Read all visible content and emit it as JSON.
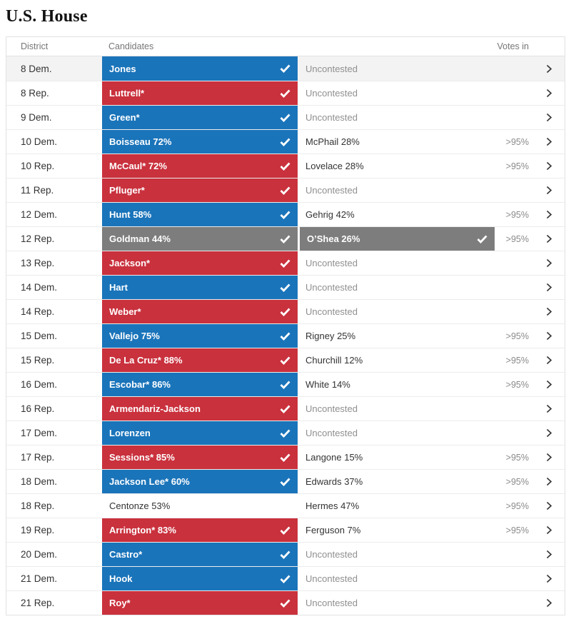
{
  "page": {
    "title": "U.S. House"
  },
  "table": {
    "headers": {
      "district": "District",
      "candidates": "Candidates",
      "votes_in": "Votes in"
    },
    "colors": {
      "dem": "#1a74ba",
      "rep": "#c9313d",
      "runoff": "#7d7d7d",
      "row_highlight": "#f3f3f3"
    },
    "icons": {
      "winner": "check-icon",
      "row_link": "chevron-right-icon"
    },
    "rows": [
      {
        "district": "8 Dem.",
        "highlight": true,
        "c1": {
          "name": "Jones",
          "party": "dem",
          "check": true
        },
        "c2": {
          "name": "Uncontested",
          "muted": true
        },
        "votes": ""
      },
      {
        "district": "8 Rep.",
        "c1": {
          "name": "Luttrell*",
          "party": "rep",
          "check": true
        },
        "c2": {
          "name": "Uncontested",
          "muted": true
        },
        "votes": ""
      },
      {
        "district": "9 Dem.",
        "c1": {
          "name": "Green*",
          "party": "dem",
          "check": true
        },
        "c2": {
          "name": "Uncontested",
          "muted": true
        },
        "votes": ""
      },
      {
        "district": "10 Dem.",
        "c1": {
          "name": "Boisseau 72%",
          "party": "dem",
          "check": true
        },
        "c2": {
          "name": "McPhail 28%"
        },
        "votes": ">95%"
      },
      {
        "district": "10 Rep.",
        "c1": {
          "name": "McCaul* 72%",
          "party": "rep",
          "check": true
        },
        "c2": {
          "name": "Lovelace 28%"
        },
        "votes": ">95%"
      },
      {
        "district": "11 Rep.",
        "c1": {
          "name": "Pfluger*",
          "party": "rep",
          "check": true
        },
        "c2": {
          "name": "Uncontested",
          "muted": true
        },
        "votes": ""
      },
      {
        "district": "12 Dem.",
        "c1": {
          "name": "Hunt 58%",
          "party": "dem",
          "check": true
        },
        "c2": {
          "name": "Gehrig 42%"
        },
        "votes": ">95%"
      },
      {
        "district": "12 Rep.",
        "c1": {
          "name": "Goldman 44%",
          "party": "runoff",
          "check": true
        },
        "c2": {
          "name": "O’Shea 26%",
          "party": "runoff",
          "check": true
        },
        "votes": ">95%"
      },
      {
        "district": "13 Rep.",
        "c1": {
          "name": "Jackson*",
          "party": "rep",
          "check": true
        },
        "c2": {
          "name": "Uncontested",
          "muted": true
        },
        "votes": ""
      },
      {
        "district": "14 Dem.",
        "c1": {
          "name": "Hart",
          "party": "dem",
          "check": true
        },
        "c2": {
          "name": "Uncontested",
          "muted": true
        },
        "votes": ""
      },
      {
        "district": "14 Rep.",
        "c1": {
          "name": "Weber*",
          "party": "rep",
          "check": true
        },
        "c2": {
          "name": "Uncontested",
          "muted": true
        },
        "votes": ""
      },
      {
        "district": "15 Dem.",
        "c1": {
          "name": "Vallejo 75%",
          "party": "dem",
          "check": true
        },
        "c2": {
          "name": "Rigney 25%"
        },
        "votes": ">95%"
      },
      {
        "district": "15 Rep.",
        "c1": {
          "name": "De La Cruz* 88%",
          "party": "rep",
          "check": true
        },
        "c2": {
          "name": "Churchill 12%"
        },
        "votes": ">95%"
      },
      {
        "district": "16 Dem.",
        "c1": {
          "name": "Escobar* 86%",
          "party": "dem",
          "check": true
        },
        "c2": {
          "name": "White 14%"
        },
        "votes": ">95%"
      },
      {
        "district": "16 Rep.",
        "c1": {
          "name": "Armendariz-Jackson",
          "party": "rep",
          "check": true
        },
        "c2": {
          "name": "Uncontested",
          "muted": true
        },
        "votes": ""
      },
      {
        "district": "17 Dem.",
        "c1": {
          "name": "Lorenzen",
          "party": "dem",
          "check": true
        },
        "c2": {
          "name": "Uncontested",
          "muted": true
        },
        "votes": ""
      },
      {
        "district": "17 Rep.",
        "c1": {
          "name": "Sessions* 85%",
          "party": "rep",
          "check": true
        },
        "c2": {
          "name": "Langone 15%"
        },
        "votes": ">95%"
      },
      {
        "district": "18 Dem.",
        "c1": {
          "name": "Jackson Lee* 60%",
          "party": "dem",
          "check": true
        },
        "c2": {
          "name": "Edwards 37%"
        },
        "votes": ">95%"
      },
      {
        "district": "18 Rep.",
        "c1": {
          "name": "Centonze 53%",
          "party": "none",
          "check": false
        },
        "c2": {
          "name": "Hermes 47%"
        },
        "votes": ">95%"
      },
      {
        "district": "19 Rep.",
        "c1": {
          "name": "Arrington* 83%",
          "party": "rep",
          "check": true
        },
        "c2": {
          "name": "Ferguson 7%"
        },
        "votes": ">95%"
      },
      {
        "district": "20 Dem.",
        "c1": {
          "name": "Castro*",
          "party": "dem",
          "check": true
        },
        "c2": {
          "name": "Uncontested",
          "muted": true
        },
        "votes": ""
      },
      {
        "district": "21 Dem.",
        "c1": {
          "name": "Hook",
          "party": "dem",
          "check": true
        },
        "c2": {
          "name": "Uncontested",
          "muted": true
        },
        "votes": ""
      },
      {
        "district": "21 Rep.",
        "c1": {
          "name": "Roy*",
          "party": "rep",
          "check": true
        },
        "c2": {
          "name": "Uncontested",
          "muted": true
        },
        "votes": ""
      }
    ]
  }
}
